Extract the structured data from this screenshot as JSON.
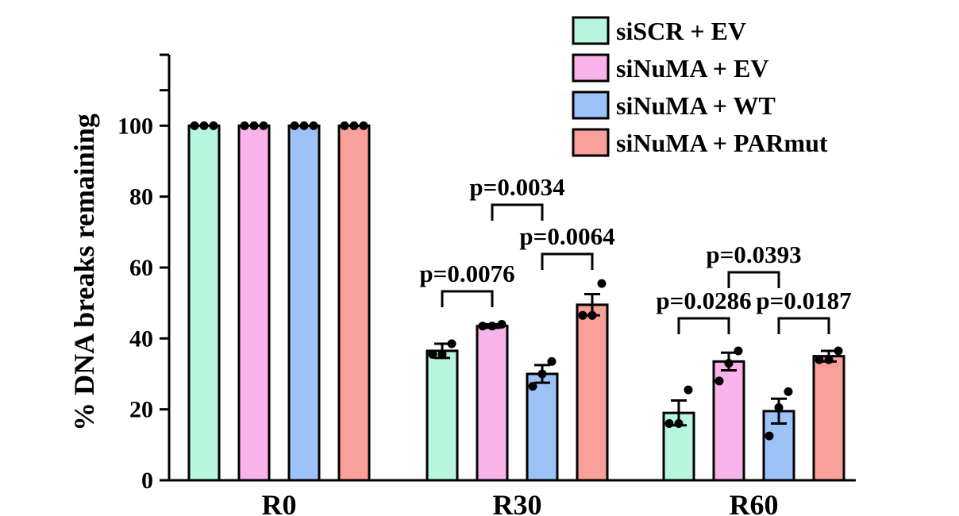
{
  "chart_data": {
    "type": "bar",
    "title": "",
    "xlabel": "",
    "ylabel": "% DNA breaks remaining",
    "ylim": [
      0,
      120
    ],
    "yticks": [
      0,
      20,
      40,
      60,
      80,
      100
    ],
    "categories": [
      "R0",
      "R30",
      "R60"
    ],
    "series": [
      {
        "name": "siSCR + EV",
        "color": "#b8f5df",
        "values": [
          100,
          36.5,
          19
        ],
        "errors": [
          0,
          2,
          3.5
        ],
        "points": [
          [
            100,
            100,
            100
          ],
          [
            35.5,
            35.5,
            38.5
          ],
          [
            16,
            16,
            25.5
          ]
        ]
      },
      {
        "name": "siNuMA + EV",
        "color": "#f7b3ea",
        "values": [
          100,
          43.5,
          33.5
        ],
        "errors": [
          0,
          0.5,
          2.5
        ],
        "points": [
          [
            100,
            100,
            100
          ],
          [
            43.5,
            43.5,
            44
          ],
          [
            28,
            33,
            36.5
          ]
        ]
      },
      {
        "name": "siNuMA + WT",
        "color": "#9cc2f7",
        "values": [
          100,
          30,
          19.5
        ],
        "errors": [
          0,
          2.5,
          3.5
        ],
        "points": [
          [
            100,
            100,
            100
          ],
          [
            26.5,
            30,
            33.5
          ],
          [
            12.5,
            20.5,
            25
          ]
        ]
      },
      {
        "name": "siNuMA + PARmut",
        "color": "#f9a09b",
        "values": [
          100,
          49.5,
          35
        ],
        "errors": [
          0,
          3,
          1.5
        ],
        "points": [
          [
            100,
            100,
            100
          ],
          [
            46.5,
            46.5,
            55.5
          ],
          [
            34,
            34,
            36.5
          ]
        ]
      }
    ],
    "annotations": [
      {
        "text": "p=0.0076",
        "category": 1,
        "from_series": 0,
        "to_series": 1
      },
      {
        "text": "p=0.0034",
        "category": 1,
        "from_series": 1,
        "to_series": 2
      },
      {
        "text": "p=0.0064",
        "category": 1,
        "from_series": 2,
        "to_series": 3
      },
      {
        "text": "p=0.0286",
        "category": 2,
        "from_series": 0,
        "to_series": 1
      },
      {
        "text": "p=0.0393",
        "category": 2,
        "from_series": 1,
        "to_series": 2
      },
      {
        "text": "p=0.0187",
        "category": 2,
        "from_series": 2,
        "to_series": 3
      }
    ],
    "legend_position": "top-right"
  }
}
